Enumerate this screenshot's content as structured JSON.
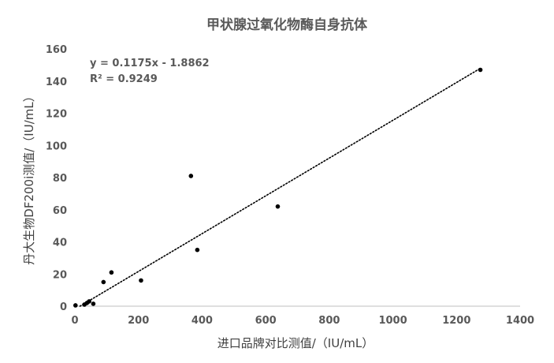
{
  "chart_data": {
    "type": "scatter",
    "title": "甲状腺过氧化物酶自身抗体",
    "xlabel": "进口品牌对比测值/（IU/mL）",
    "ylabel": "丹大生物DF200i测值/（IU/mL）",
    "xlim": [
      0,
      1400
    ],
    "ylim": [
      0,
      160
    ],
    "x_ticks": [
      "0",
      "200",
      "400",
      "600",
      "800",
      "1000",
      "1200",
      "1400"
    ],
    "y_ticks": [
      "0",
      "20",
      "40",
      "60",
      "80",
      "100",
      "120",
      "140",
      "160"
    ],
    "grid": false,
    "legend": "none",
    "points": [
      {
        "x": 2,
        "y": 0.5
      },
      {
        "x": 30,
        "y": 1
      },
      {
        "x": 38,
        "y": 2
      },
      {
        "x": 45,
        "y": 3
      },
      {
        "x": 58,
        "y": 1.5
      },
      {
        "x": 90,
        "y": 15
      },
      {
        "x": 115,
        "y": 21
      },
      {
        "x": 208,
        "y": 16
      },
      {
        "x": 365,
        "y": 81
      },
      {
        "x": 385,
        "y": 35
      },
      {
        "x": 638,
        "y": 62
      },
      {
        "x": 1275,
        "y": 147
      }
    ],
    "trendline": {
      "type": "linear",
      "style": "dotted",
      "slope": 0.1175,
      "intercept": -1.8862
    },
    "equation_text": "y = 0.1175x - 1.8862",
    "r2_text": "R² = 0.9249",
    "colors": {
      "points": "#000000",
      "trendline": "#000000",
      "axis": "#bfbfbf",
      "text": "#595959"
    }
  }
}
